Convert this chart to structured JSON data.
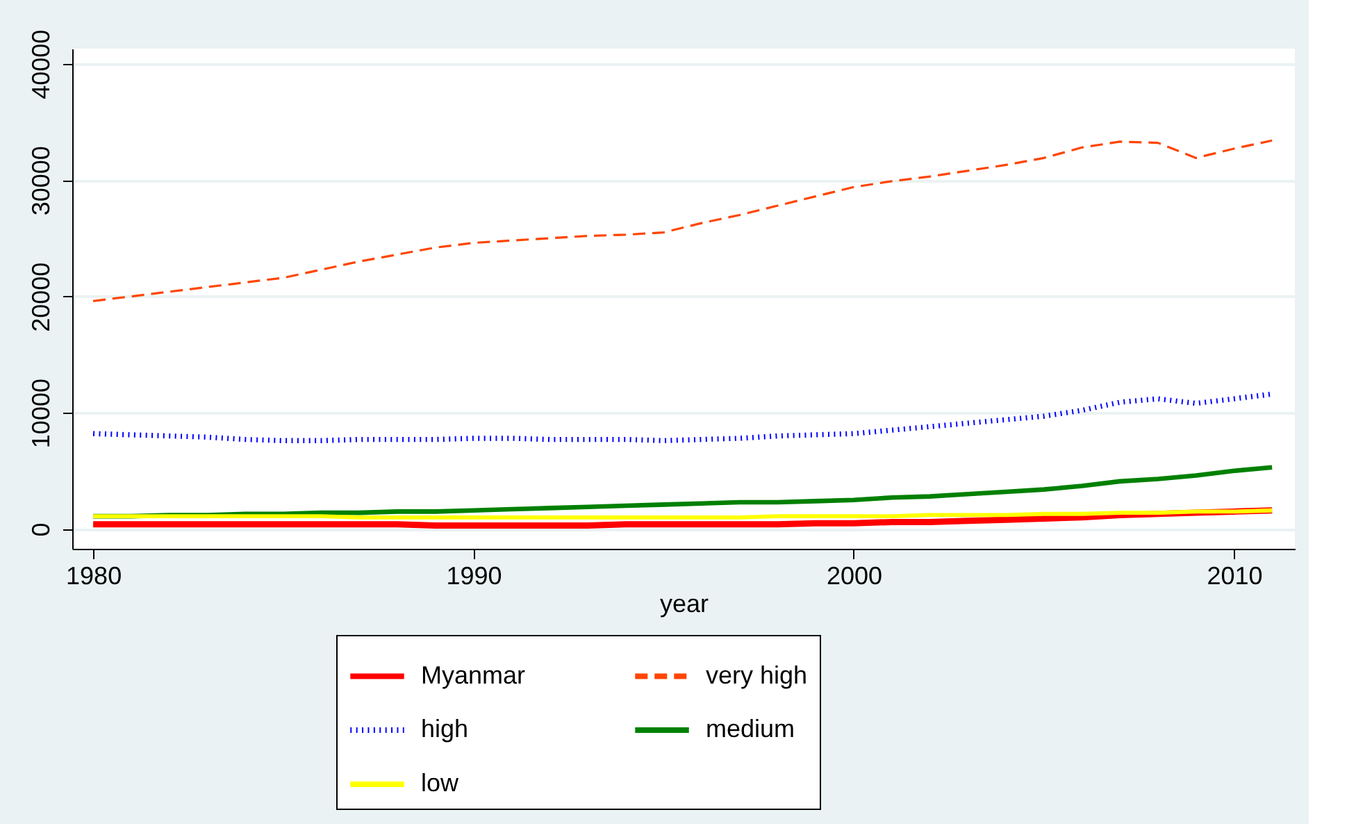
{
  "chart_data": {
    "type": "line",
    "xlabel": "year",
    "x": [
      1980,
      1981,
      1982,
      1983,
      1984,
      1985,
      1986,
      1987,
      1988,
      1989,
      1990,
      1991,
      1992,
      1993,
      1994,
      1995,
      1996,
      1997,
      1998,
      1999,
      2000,
      2001,
      2002,
      2003,
      2004,
      2005,
      2006,
      2007,
      2008,
      2009,
      2010,
      2011
    ],
    "series": [
      {
        "name": "Myanmar",
        "color": "#ff0000",
        "line_style": "solid",
        "values": [
          400,
          400,
          400,
          400,
          400,
          400,
          400,
          400,
          400,
          300,
          300,
          300,
          300,
          300,
          400,
          400,
          400,
          400,
          400,
          500,
          500,
          600,
          600,
          700,
          800,
          900,
          1000,
          1200,
          1300,
          1400,
          1500,
          1600
        ]
      },
      {
        "name": "very high",
        "color": "#ff4500",
        "line_style": "dashed",
        "values": [
          19600,
          20000,
          20400,
          20800,
          21200,
          21600,
          22300,
          23000,
          23600,
          24200,
          24600,
          24800,
          25000,
          25200,
          25300,
          25500,
          26300,
          27000,
          27800,
          28600,
          29400,
          29900,
          30300,
          30800,
          31300,
          31900,
          32800,
          33300,
          33200,
          31900,
          32700,
          33400
        ]
      },
      {
        "name": "high",
        "color": "#0000ff",
        "line_style": "dotted",
        "values": [
          8200,
          8100,
          8000,
          7900,
          7700,
          7600,
          7600,
          7700,
          7700,
          7700,
          7800,
          7800,
          7700,
          7700,
          7700,
          7600,
          7700,
          7800,
          8000,
          8100,
          8200,
          8500,
          8800,
          9100,
          9400,
          9700,
          10200,
          10900,
          11200,
          10800,
          11200,
          11600
        ]
      },
      {
        "name": "medium",
        "color": "#008000",
        "line_style": "solid",
        "values": [
          1100,
          1100,
          1200,
          1200,
          1300,
          1300,
          1400,
          1400,
          1500,
          1500,
          1600,
          1700,
          1800,
          1900,
          2000,
          2100,
          2200,
          2300,
          2300,
          2400,
          2500,
          2700,
          2800,
          3000,
          3200,
          3400,
          3700,
          4100,
          4300,
          4600,
          5000,
          5300
        ]
      },
      {
        "name": "low",
        "color": "#ffff00",
        "line_style": "solid",
        "values": [
          1100,
          1100,
          1100,
          1100,
          1100,
          1100,
          1100,
          1000,
          1000,
          1000,
          1000,
          1000,
          1000,
          1000,
          1000,
          1000,
          1000,
          1000,
          1100,
          1100,
          1100,
          1100,
          1200,
          1200,
          1200,
          1300,
          1300,
          1400,
          1400,
          1500,
          1500,
          1600
        ]
      }
    ],
    "xlim": [
      1979.45,
      2011.6
    ],
    "xticks": [
      1980,
      1990,
      2000,
      2010
    ],
    "ylim": [
      -1700,
      41300
    ],
    "yticks": [
      0,
      10000,
      20000,
      30000,
      40000
    ],
    "grid": "y",
    "legend": "bottom"
  }
}
